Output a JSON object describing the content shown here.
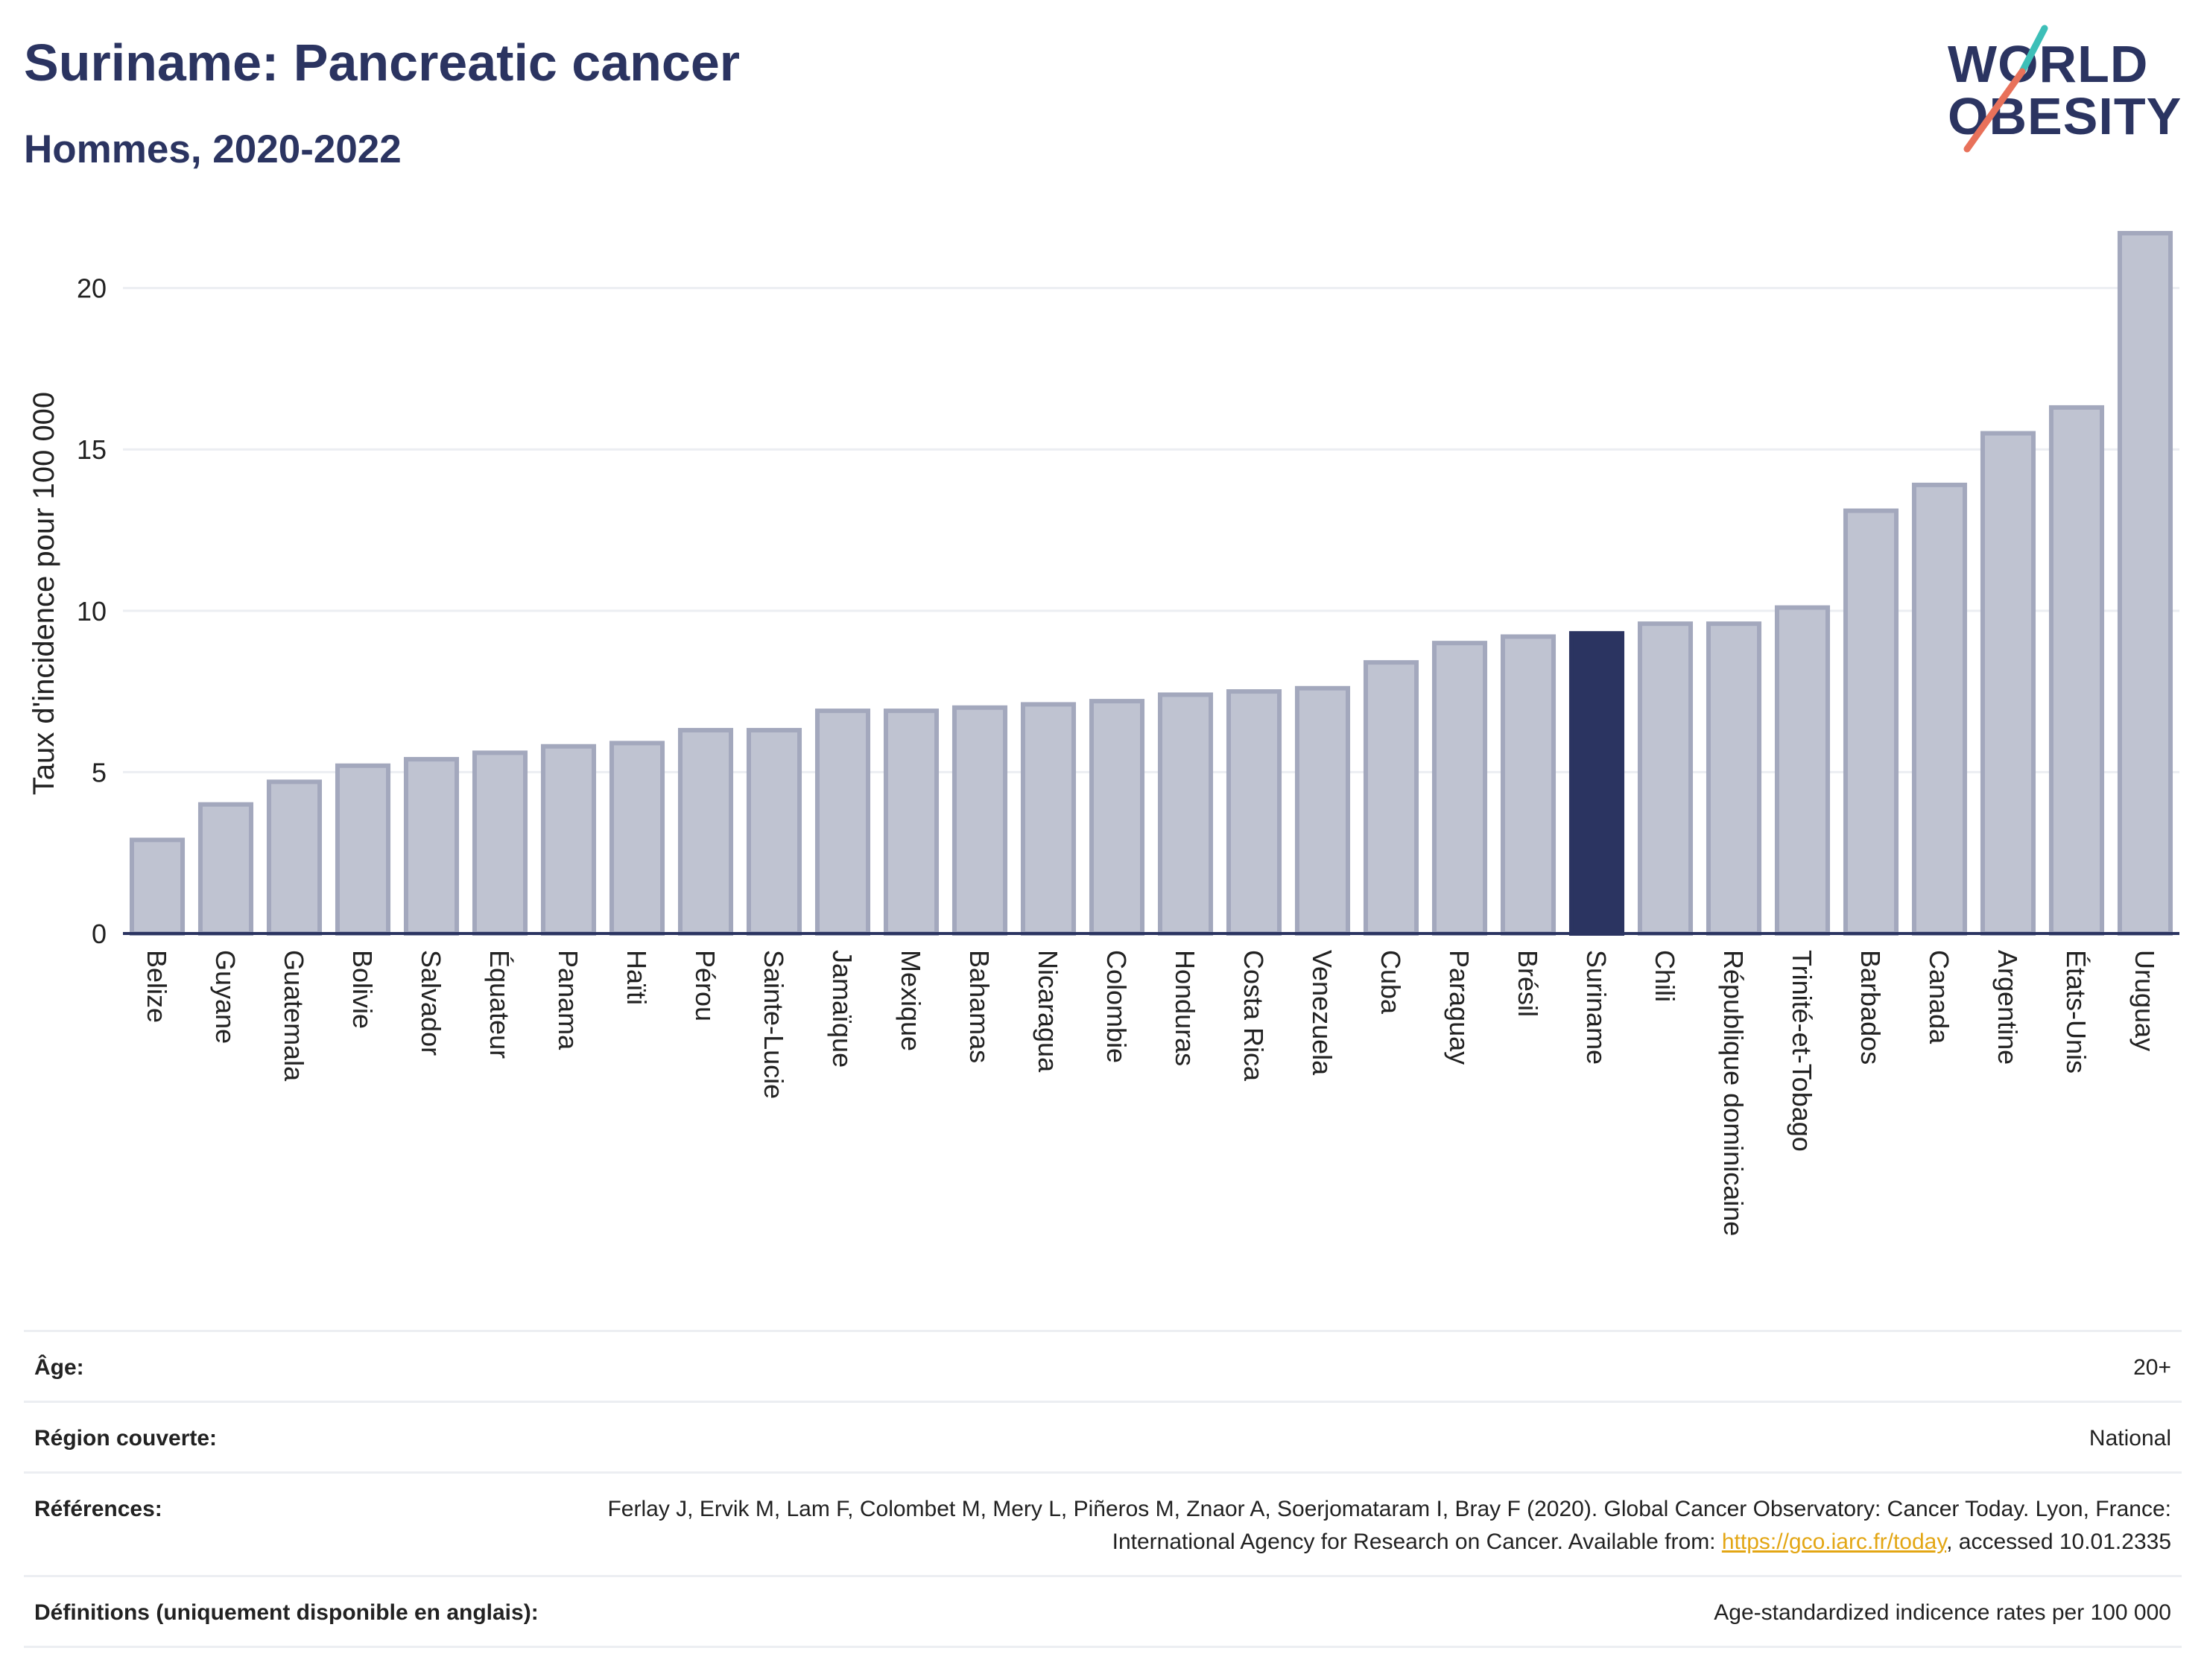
{
  "header": {
    "title": "Suriname: Pancreatic cancer",
    "subtitle": "Hommes, 2020-2022"
  },
  "logo": {
    "line1": "WORLD",
    "line2": "OBESITY",
    "slash_colors": [
      "#3dbfb8",
      "#e8715a"
    ]
  },
  "colors": {
    "bar_default": "#bfc3d1",
    "bar_default_stroke": "#a3a8bd",
    "bar_highlight": "#2b3461",
    "text": "#2b3461",
    "grid": "#eceef2",
    "link": "#e3a614"
  },
  "chart_data": {
    "type": "bar",
    "ylabel": "Taux d'incidence pour 100 000",
    "ylim": [
      0,
      22
    ],
    "yticks": [
      0,
      5,
      10,
      15,
      20
    ],
    "grid": true,
    "highlight": "Suriname",
    "categories": [
      "Belize",
      "Guyane",
      "Guatemala",
      "Bolivie",
      "Salvador",
      "Équateur",
      "Panama",
      "Haïti",
      "Pérou",
      "Sainte-Lucie",
      "Jamaïque",
      "Mexique",
      "Bahamas",
      "Nicaragua",
      "Colombie",
      "Honduras",
      "Costa Rica",
      "Venezuela",
      "Cuba",
      "Paraguay",
      "Brésil",
      "Suriname",
      "Chili",
      "République dominicaine",
      "Trinité-et-Tobago",
      "Barbados",
      "Canada",
      "Argentine",
      "États-Unis",
      "Uruguay"
    ],
    "values": [
      2.9,
      4.0,
      4.7,
      5.2,
      5.4,
      5.6,
      5.8,
      5.9,
      6.3,
      6.3,
      6.9,
      6.9,
      7.0,
      7.1,
      7.2,
      7.4,
      7.5,
      7.6,
      8.4,
      9.0,
      9.2,
      9.3,
      9.6,
      9.6,
      10.1,
      13.1,
      13.9,
      15.5,
      16.3,
      21.7
    ]
  },
  "meta": {
    "rows": [
      {
        "label": "Âge:",
        "value": "20+"
      },
      {
        "label": "Région couverte:",
        "value": "National"
      },
      {
        "label": "Références:",
        "value_pre": "Ferlay J, Ervik M, Lam F, Colombet M, Mery L, Piñeros M, Znaor A, Soerjomataram I, Bray F (2020). Global Cancer Observatory: Cancer Today. Lyon, France: International Agency for Research on Cancer. Available from: ",
        "link": "https://gco.iarc.fr/today",
        "value_post": ", accessed 10.01.2335"
      },
      {
        "label": "Définitions (uniquement disponible en anglais):",
        "value": "Age-standardized indicence rates per 100 000"
      }
    ]
  }
}
